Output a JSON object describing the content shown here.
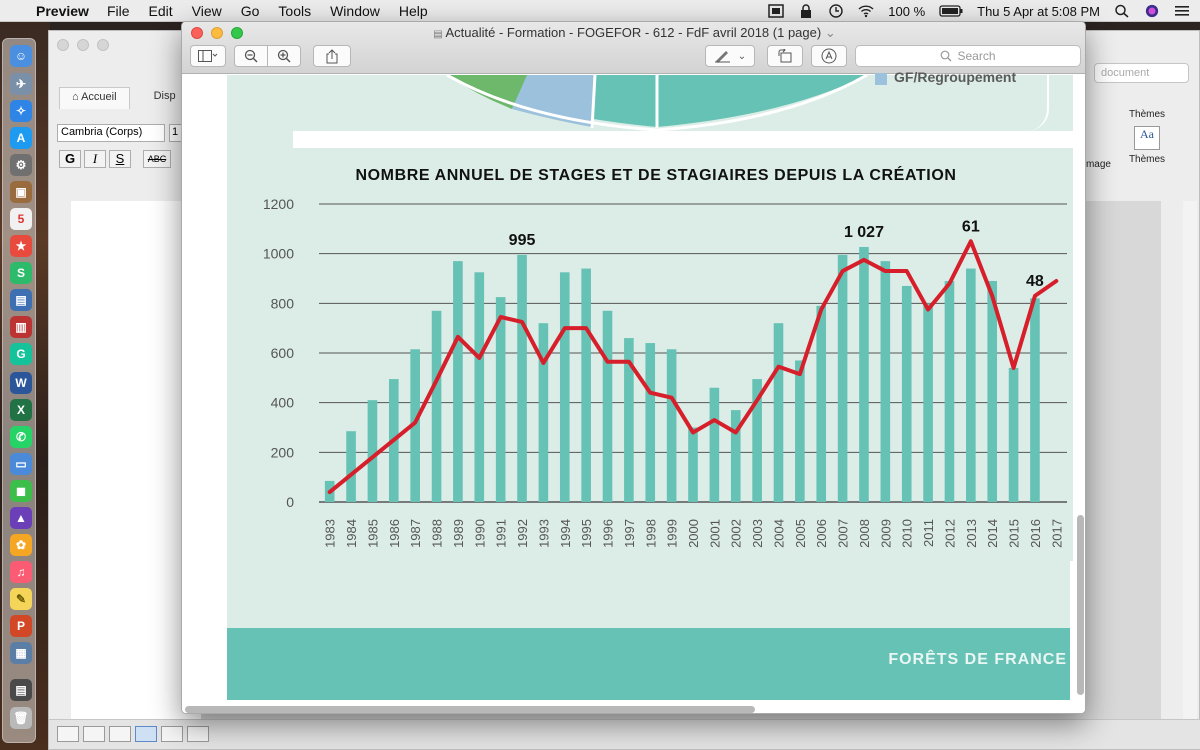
{
  "menubar": {
    "app_name": "Preview",
    "items": [
      "File",
      "Edit",
      "View",
      "Go",
      "Tools",
      "Window",
      "Help"
    ],
    "battery": "100 %",
    "datetime": "Thu 5 Apr at  5:08 PM"
  },
  "word": {
    "tabs": [
      "Accueil",
      "Disp"
    ],
    "font_name": "Cambria (Corps)",
    "font_size": "1",
    "format_buttons": [
      "G",
      "I",
      "S",
      "ABC"
    ],
    "search_placeholder": "document",
    "themes_label": "Thèmes",
    "themes_header": "Thèmes",
    "image_label": "image"
  },
  "preview": {
    "title": "Actualité - Formation - FOGEFOR - 612 - FdF avril 2018 (1 page)",
    "search_placeholder": "Search"
  },
  "document": {
    "legend_label": "GF/Regroupement",
    "footer": "FORÊTS DE FRANCE"
  },
  "colors": {
    "bar": "#66c2b4",
    "line": "#d61f2a",
    "panel": "#dcede8",
    "footer": "#66c2b4"
  },
  "chart_data": {
    "type": "bar",
    "title": "NOMBRE ANNUEL DE STAGES ET DE STAGIAIRES DEPUIS LA CRÉATION",
    "ylim": [
      0,
      1200
    ],
    "yticks": [
      0,
      200,
      400,
      600,
      800,
      1000,
      1200
    ],
    "categories": [
      "1983",
      "1984",
      "1985",
      "1986",
      "1987",
      "1988",
      "1989",
      "1990",
      "1991",
      "1992",
      "1993",
      "1994",
      "1995",
      "1996",
      "1997",
      "1998",
      "1999",
      "2000",
      "2001",
      "2002",
      "2003",
      "2004",
      "2005",
      "2006",
      "2007",
      "2008",
      "2009",
      "2010",
      "2011",
      "2012",
      "2013",
      "2014",
      "2015",
      "2016",
      "2017"
    ],
    "series": [
      {
        "kind": "bar",
        "values": [
          85,
          285,
          410,
          495,
          615,
          770,
          970,
          925,
          825,
          995,
          720,
          925,
          940,
          770,
          660,
          640,
          615,
          300,
          460,
          370,
          495,
          720,
          570,
          790,
          995,
          1027,
          970,
          870,
          800,
          890,
          940,
          890,
          540,
          820,
          null
        ]
      },
      {
        "kind": "line",
        "values": [
          40,
          110,
          180,
          250,
          320,
          490,
          665,
          580,
          745,
          725,
          560,
          700,
          700,
          565,
          565,
          440,
          420,
          280,
          330,
          280,
          410,
          545,
          515,
          775,
          930,
          975,
          930,
          930,
          775,
          880,
          1050,
          830,
          540,
          830,
          890
        ]
      }
    ],
    "annotations": [
      {
        "category": "1992",
        "value": 995,
        "label": "995"
      },
      {
        "category": "2008",
        "value": 1027,
        "label": "1 027"
      },
      {
        "category": "2013",
        "value": 1050,
        "label": "61"
      },
      {
        "category": "2016",
        "value": 830,
        "label": "48"
      }
    ]
  }
}
